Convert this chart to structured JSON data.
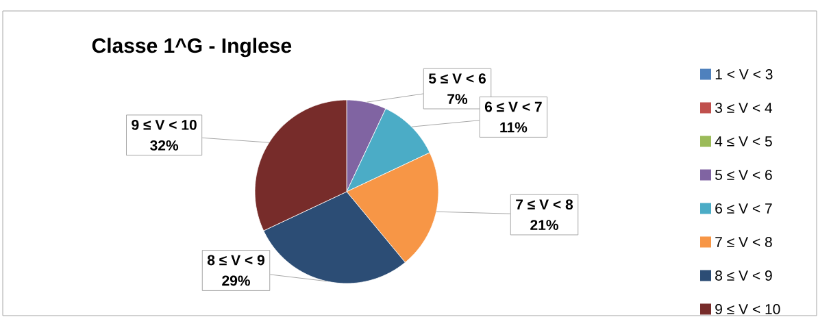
{
  "chart_data": {
    "type": "pie",
    "title": "Classe 1^G - Inglese",
    "categories": [
      "1 < V < 3",
      "3 ≤ V < 4",
      "4 ≤ V < 5",
      "5 ≤ V < 6",
      "6 ≤ V < 7",
      "7 ≤ V < 8",
      "8 ≤ V < 9",
      "9 ≤ V < 10"
    ],
    "values": [
      0,
      0,
      0,
      7,
      11,
      21,
      29,
      32
    ],
    "colors": [
      "#4f81bd",
      "#c0504d",
      "#9bbb59",
      "#8064a2",
      "#4bacc6",
      "#f79646",
      "#2c4d75",
      "#772c2a"
    ],
    "value_labels": [
      null,
      null,
      null,
      "7%",
      "11%",
      "21%",
      "29%",
      "32%"
    ],
    "legend": "right"
  }
}
